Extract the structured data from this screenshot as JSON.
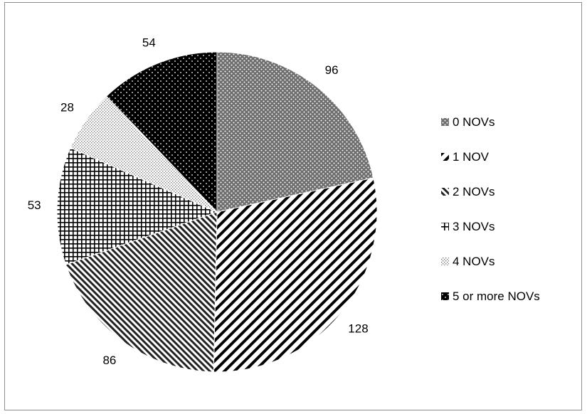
{
  "chart_data": {
    "type": "pie",
    "slices": [
      {
        "label": "0 NOVs",
        "value": 96,
        "pattern": "dots-grey"
      },
      {
        "label": "1 NOV",
        "value": 128,
        "pattern": "diagonal-up"
      },
      {
        "label": "2 NOVs",
        "value": 86,
        "pattern": "diagonal-down"
      },
      {
        "label": "3 NOVs",
        "value": 53,
        "pattern": "grid"
      },
      {
        "label": "4 NOVs",
        "value": 28,
        "pattern": "fine-dots"
      },
      {
        "label": "5 or more NOVs",
        "value": 54,
        "pattern": "dots-black"
      }
    ],
    "legend_position": "right",
    "data_labels": "outside",
    "start_angle": "12 o'clock",
    "direction": "clockwise"
  }
}
